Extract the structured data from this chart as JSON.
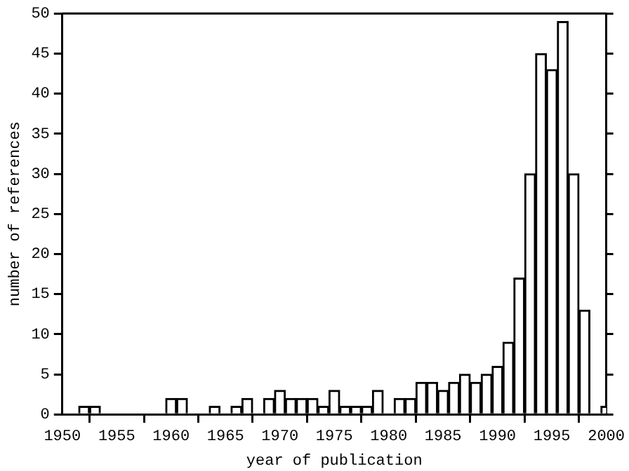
{
  "chart_data": {
    "type": "bar",
    "xlabel": "year of publication",
    "ylabel": "number of references",
    "x": [
      1950,
      1951,
      1952,
      1953,
      1954,
      1955,
      1956,
      1957,
      1958,
      1959,
      1960,
      1961,
      1962,
      1963,
      1964,
      1965,
      1966,
      1967,
      1968,
      1969,
      1970,
      1971,
      1972,
      1973,
      1974,
      1975,
      1976,
      1977,
      1978,
      1979,
      1980,
      1981,
      1982,
      1983,
      1984,
      1985,
      1986,
      1987,
      1988,
      1989,
      1990,
      1991,
      1992,
      1993,
      1994,
      1995,
      1996,
      1997,
      1998,
      1999,
      2000
    ],
    "values": [
      0,
      0,
      1,
      1,
      0,
      0,
      0,
      0,
      0,
      0,
      2,
      2,
      0,
      0,
      1,
      0,
      1,
      2,
      0,
      2,
      3,
      2,
      2,
      2,
      1,
      3,
      1,
      1,
      1,
      3,
      0,
      2,
      2,
      4,
      4,
      3,
      4,
      5,
      4,
      5,
      6,
      9,
      17,
      30,
      45,
      43,
      49,
      30,
      13,
      0,
      1
    ],
    "color": "#ffffff",
    "xlim": [
      1950,
      2000
    ],
    "xticks": [
      1950,
      1955,
      1960,
      1965,
      1970,
      1975,
      1980,
      1985,
      1990,
      1995,
      2000
    ],
    "ylim": [
      0,
      50
    ],
    "yticks": [
      0,
      5,
      10,
      15,
      20,
      25,
      30,
      35,
      40,
      45,
      50
    ],
    "grid": false,
    "legend": false
  }
}
